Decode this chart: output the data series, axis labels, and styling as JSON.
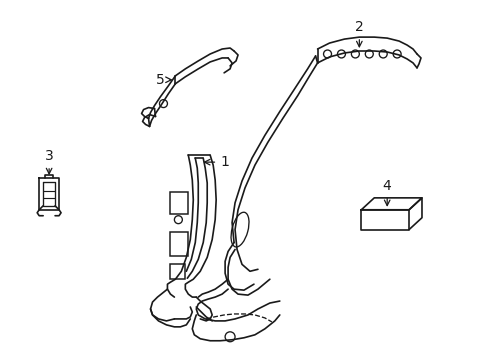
{
  "bg_color": "#ffffff",
  "line_color": "#1a1a1a",
  "line_width": 1.2,
  "label_fontsize": 10
}
